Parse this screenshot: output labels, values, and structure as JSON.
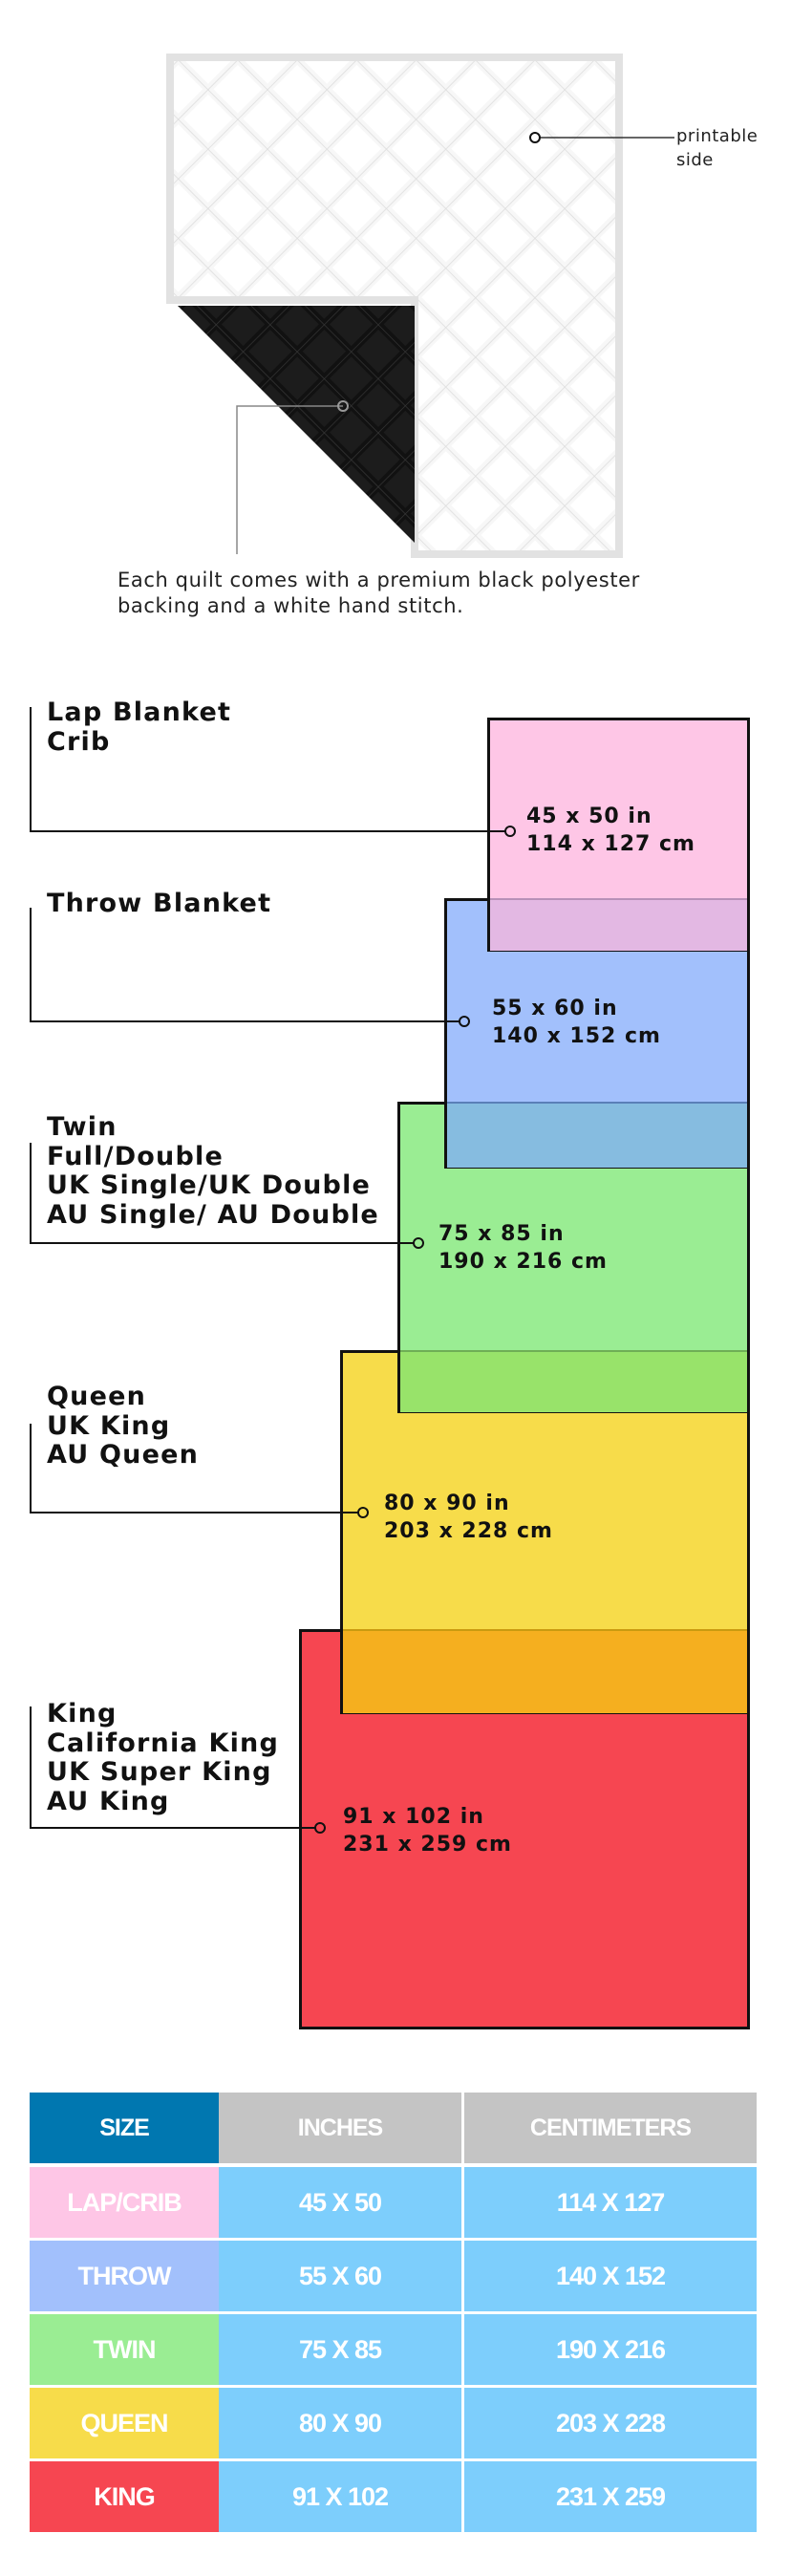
{
  "quilt": {
    "printable_label": [
      "printable",
      "side"
    ],
    "caption": [
      "Each quilt comes with a premium black polyester",
      "backing and a white hand stitch."
    ]
  },
  "sizes": [
    {
      "labels": [
        "Lap Blanket",
        "Crib"
      ],
      "inches": "45 x 50 in",
      "cm": "114 x 127 cm",
      "color": "#fec6e6"
    },
    {
      "labels": [
        "Throw Blanket"
      ],
      "inches": "55 x 60 in",
      "cm": "140 x 152 cm",
      "color": "#a2c0fc"
    },
    {
      "labels": [
        "Twin",
        "Full/Double",
        "UK Single/UK Double",
        "AU Single/ AU Double"
      ],
      "inches": "75 x 85 in",
      "cm": "190 x 216 cm",
      "color": "#9aed93"
    },
    {
      "labels": [
        "Queen",
        "UK King",
        "AU Queen"
      ],
      "inches": "80 x 90 in",
      "cm": "203 x 228 cm",
      "color": "#f7dc4a"
    },
    {
      "labels": [
        "King",
        "California King",
        "UK Super King",
        "AU King"
      ],
      "inches": "91 x 102 in",
      "cm": "231 x 259 cm",
      "color": "#f64651"
    }
  ],
  "table": {
    "headers": [
      "SIZE",
      "INCHES",
      "CENTIMETERS"
    ],
    "header_colors": {
      "size": "#0077b0",
      "other": "#c4c4c4"
    },
    "data_cell_color": "#7dcefc",
    "rows": [
      {
        "size": "LAP/CRIB",
        "inches": "45 X 50",
        "cm": "114 X 127",
        "color": "#fec6e6"
      },
      {
        "size": "THROW",
        "inches": "55 X 60",
        "cm": "140 X 152",
        "color": "#a2c0fc"
      },
      {
        "size": "TWIN",
        "inches": "75 X 85",
        "cm": "190 X 216",
        "color": "#9aed93"
      },
      {
        "size": "QUEEN",
        "inches": "80 X 90",
        "cm": "203 X 228",
        "color": "#f7dc4a"
      },
      {
        "size": "KING",
        "inches": "91 X 102",
        "cm": "231 X 259",
        "color": "#f64651"
      }
    ]
  }
}
